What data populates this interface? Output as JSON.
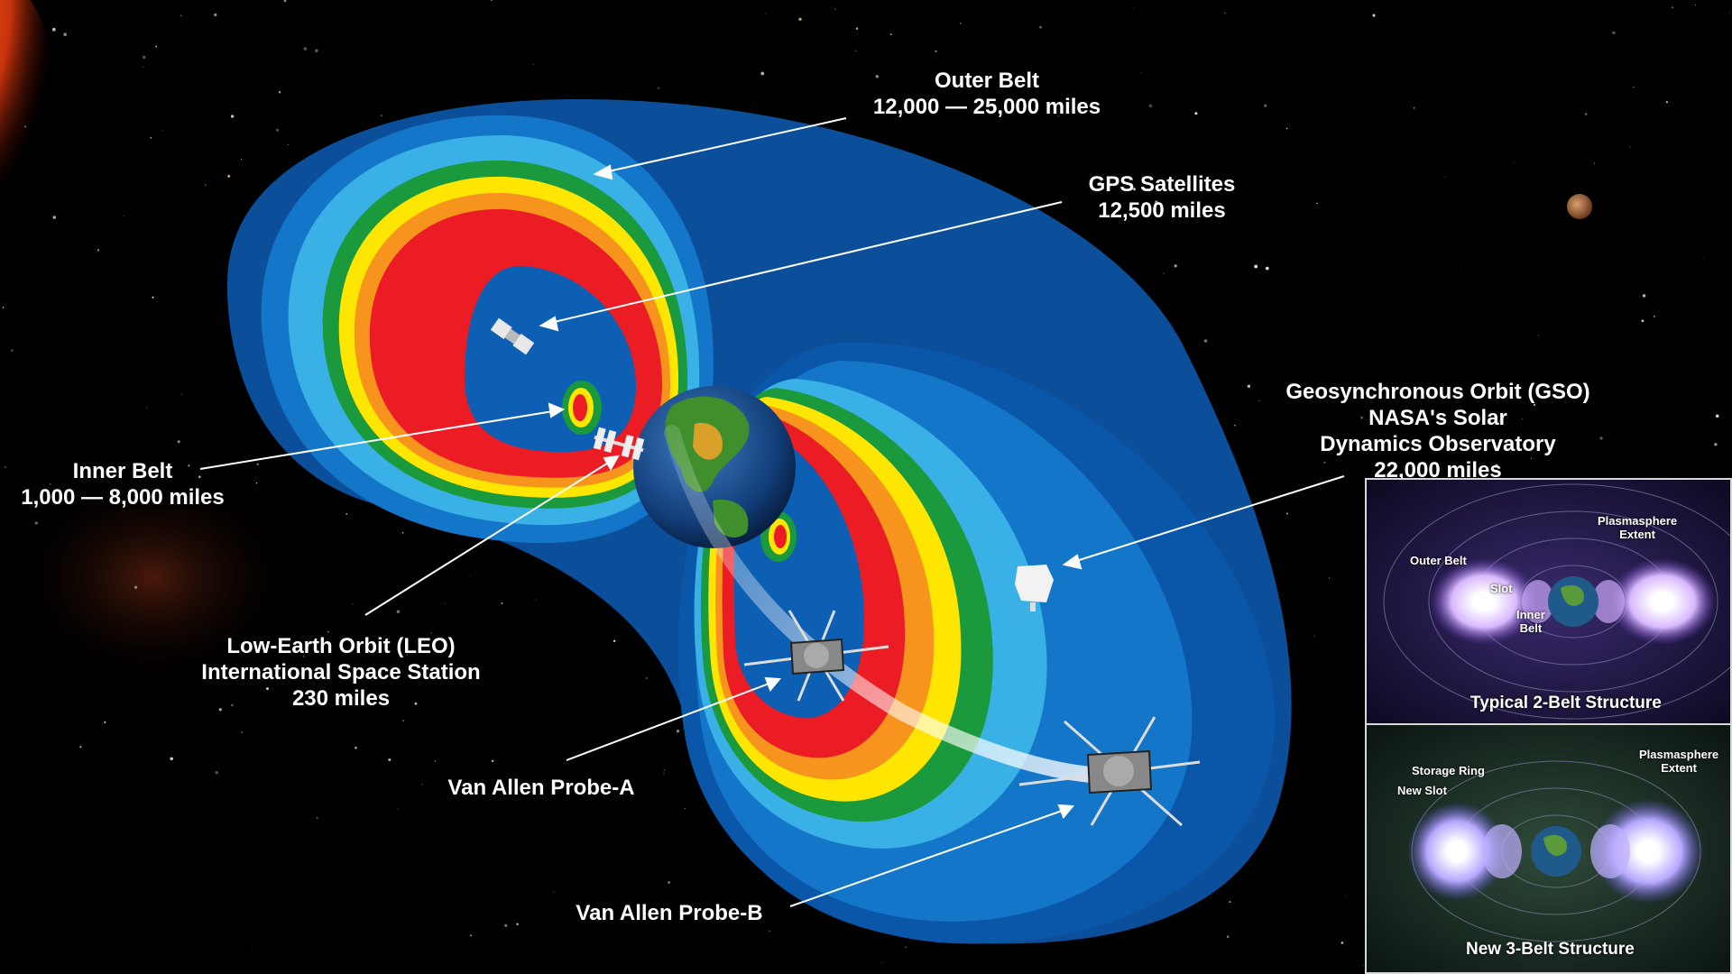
{
  "labels": {
    "outer_belt": {
      "name": "Outer Belt",
      "range": "12,000 — 25,000 miles"
    },
    "gps": {
      "name": "GPS Satellites",
      "range": "12,500 miles"
    },
    "gso": {
      "line1": "Geosynchronous Orbit (GSO)",
      "line2": "NASA's Solar",
      "line3": "Dynamics Observatory",
      "range": "22,000 miles"
    },
    "inner_belt": {
      "name": "Inner Belt",
      "range": "1,000 — 8,000 miles"
    },
    "leo": {
      "line1": "Low-Earth Orbit (LEO)",
      "line2": "International Space Station",
      "range": "230 miles"
    },
    "probe_a": "Van Allen Probe-A",
    "probe_b": "Van Allen Probe-B"
  },
  "inset_top": {
    "title": "Typical 2-Belt Structure",
    "outer_belt": "Outer Belt",
    "slot": "Slot",
    "inner_belt_1": "Inner",
    "inner_belt_2": "Belt",
    "plasmasphere_1": "Plasmasphere",
    "plasmasphere_2": "Extent"
  },
  "inset_bottom": {
    "title": "New 3-Belt Structure",
    "storage_ring": "Storage Ring",
    "new_slot": "New Slot",
    "plasmasphere_1": "Plasmasphere",
    "plasmasphere_2": "Extent"
  },
  "colors": {
    "belt_blue_dark": "#0a56a8",
    "belt_blue": "#1476c9",
    "belt_blue_light": "#39b0e6",
    "belt_green": "#1a9a3c",
    "belt_yellow": "#ffe600",
    "belt_orange": "#f7941d",
    "belt_red": "#ec1c24"
  }
}
